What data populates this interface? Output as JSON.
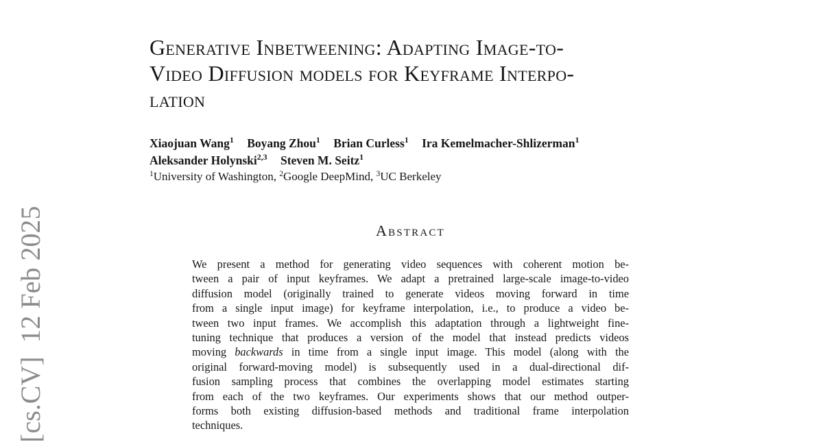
{
  "page": {
    "background_color": "#ffffff",
    "text_color": "#161616"
  },
  "arxiv_stamp": {
    "text": "[cs.CV]  12 Feb 2025",
    "color": "#8c8c8c"
  },
  "title": {
    "lines": [
      "Generative Inbetweening: Adapting Image-to-",
      "Video Diffusion models for Keyframe Interpo-",
      "lation"
    ]
  },
  "authors": {
    "line1": [
      {
        "name": "Xiaojuan Wang",
        "sup": "1"
      },
      {
        "name": "Boyang Zhou",
        "sup": "1"
      },
      {
        "name": "Brian Curless",
        "sup": "1"
      },
      {
        "name": "Ira Kemelmacher-Shlizerman",
        "sup": "1"
      }
    ],
    "line2": [
      {
        "name": "Aleksander Holynski",
        "sup": "2,3"
      },
      {
        "name": "Steven M. Seitz",
        "sup": "1"
      }
    ],
    "affiliations": [
      {
        "sup": "1",
        "text": "University of Washington, "
      },
      {
        "sup": "2",
        "text": "Google DeepMind, "
      },
      {
        "sup": "3",
        "text": "UC Berkeley"
      }
    ]
  },
  "abstract": {
    "heading": "Abstract",
    "lines1": [
      "We present a method for generating video sequences with coherent motion be-",
      "tween a pair of input keyframes. We adapt a pretrained large-scale image-to-video",
      "diffusion model (originally trained to generate videos moving forward in time",
      "from a single input image) for keyframe interpolation, i.e., to produce a video be-",
      "tween two input frames. We accomplish this adaptation through a lightweight fine-",
      "tuning technique that produces a version of the model that instead predicts videos"
    ],
    "italic_line": {
      "pre": "moving ",
      "italic": "backwards",
      "post": " in time from a single input image. This model (along with the"
    },
    "lines2": [
      "original forward-moving model) is subsequently used in a dual-directional dif-",
      "fusion sampling process that combines the overlapping model estimates starting",
      "from each of the two keyframes. Our experiments shows that our method outper-",
      "forms both existing diffusion-based methods and traditional frame interpolation",
      "techniques."
    ]
  }
}
